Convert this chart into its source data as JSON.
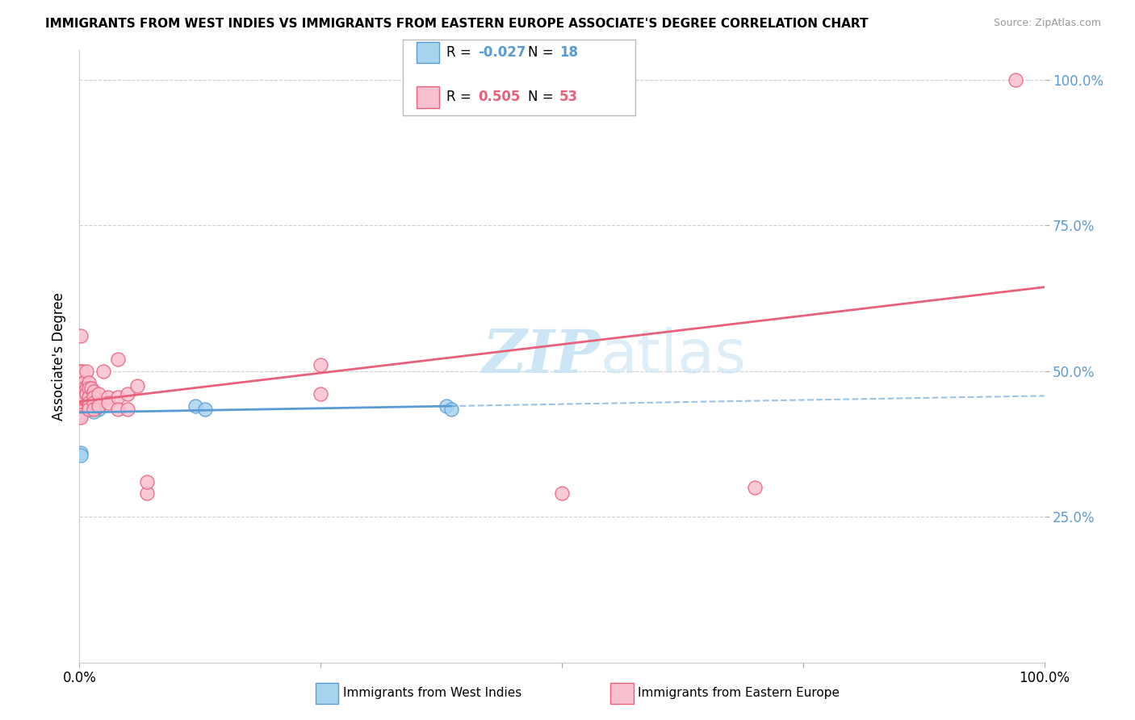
{
  "title": "IMMIGRANTS FROM WEST INDIES VS IMMIGRANTS FROM EASTERN EUROPE ASSOCIATE'S DEGREE CORRELATION CHART",
  "source": "Source: ZipAtlas.com",
  "ylabel": "Associate's Degree",
  "legend_label1": "Immigrants from West Indies",
  "legend_label2": "Immigrants from Eastern Europe",
  "r1": "-0.027",
  "n1": "18",
  "r2": "0.505",
  "n2": "53",
  "blue_color": "#a8d4f0",
  "pink_color": "#f9c0d0",
  "blue_line_color": "#5b9bd5",
  "pink_line_color": "#e8607a",
  "blue_scatter": [
    [
      0.02,
      0.435
    ],
    [
      0.015,
      0.43
    ],
    [
      0.01,
      0.44
    ],
    [
      0.008,
      0.455
    ],
    [
      0.005,
      0.45
    ],
    [
      0.003,
      0.43
    ],
    [
      0.002,
      0.435
    ],
    [
      0.001,
      0.44
    ],
    [
      0.001,
      0.455
    ],
    [
      0.001,
      0.46
    ],
    [
      0.001,
      0.43
    ],
    [
      0.001,
      0.425
    ],
    [
      0.12,
      0.44
    ],
    [
      0.13,
      0.435
    ],
    [
      0.38,
      0.44
    ],
    [
      0.385,
      0.435
    ],
    [
      0.001,
      0.36
    ],
    [
      0.001,
      0.355
    ]
  ],
  "pink_scatter": [
    [
      0.001,
      0.56
    ],
    [
      0.001,
      0.5
    ],
    [
      0.001,
      0.48
    ],
    [
      0.001,
      0.47
    ],
    [
      0.001,
      0.465
    ],
    [
      0.001,
      0.46
    ],
    [
      0.001,
      0.455
    ],
    [
      0.001,
      0.45
    ],
    [
      0.001,
      0.445
    ],
    [
      0.001,
      0.44
    ],
    [
      0.001,
      0.435
    ],
    [
      0.001,
      0.43
    ],
    [
      0.001,
      0.425
    ],
    [
      0.001,
      0.42
    ],
    [
      0.003,
      0.5
    ],
    [
      0.003,
      0.46
    ],
    [
      0.003,
      0.455
    ],
    [
      0.005,
      0.48
    ],
    [
      0.005,
      0.47
    ],
    [
      0.005,
      0.465
    ],
    [
      0.005,
      0.455
    ],
    [
      0.007,
      0.5
    ],
    [
      0.007,
      0.47
    ],
    [
      0.007,
      0.46
    ],
    [
      0.01,
      0.48
    ],
    [
      0.01,
      0.47
    ],
    [
      0.01,
      0.455
    ],
    [
      0.01,
      0.445
    ],
    [
      0.01,
      0.44
    ],
    [
      0.01,
      0.435
    ],
    [
      0.012,
      0.47
    ],
    [
      0.015,
      0.465
    ],
    [
      0.015,
      0.455
    ],
    [
      0.015,
      0.445
    ],
    [
      0.015,
      0.435
    ],
    [
      0.02,
      0.46
    ],
    [
      0.02,
      0.44
    ],
    [
      0.025,
      0.5
    ],
    [
      0.03,
      0.455
    ],
    [
      0.03,
      0.445
    ],
    [
      0.04,
      0.52
    ],
    [
      0.04,
      0.455
    ],
    [
      0.04,
      0.435
    ],
    [
      0.05,
      0.46
    ],
    [
      0.05,
      0.435
    ],
    [
      0.06,
      0.475
    ],
    [
      0.07,
      0.29
    ],
    [
      0.07,
      0.31
    ],
    [
      0.25,
      0.51
    ],
    [
      0.25,
      0.46
    ],
    [
      0.5,
      0.29
    ],
    [
      0.7,
      0.3
    ],
    [
      0.97,
      1.0
    ]
  ],
  "xlim": [
    0.0,
    1.0
  ],
  "ylim": [
    0.0,
    1.05
  ],
  "yticks": [
    0.25,
    0.5,
    0.75,
    1.0
  ],
  "ytick_labels": [
    "25.0%",
    "50.0%",
    "75.0%",
    "100.0%"
  ],
  "xticks": [
    0.0,
    0.25,
    0.5,
    0.75,
    1.0
  ],
  "xtick_labels": [
    "0.0%",
    "",
    "",
    "",
    "100.0%"
  ],
  "bg_color": "#ffffff",
  "grid_color": "#d0d0d0"
}
